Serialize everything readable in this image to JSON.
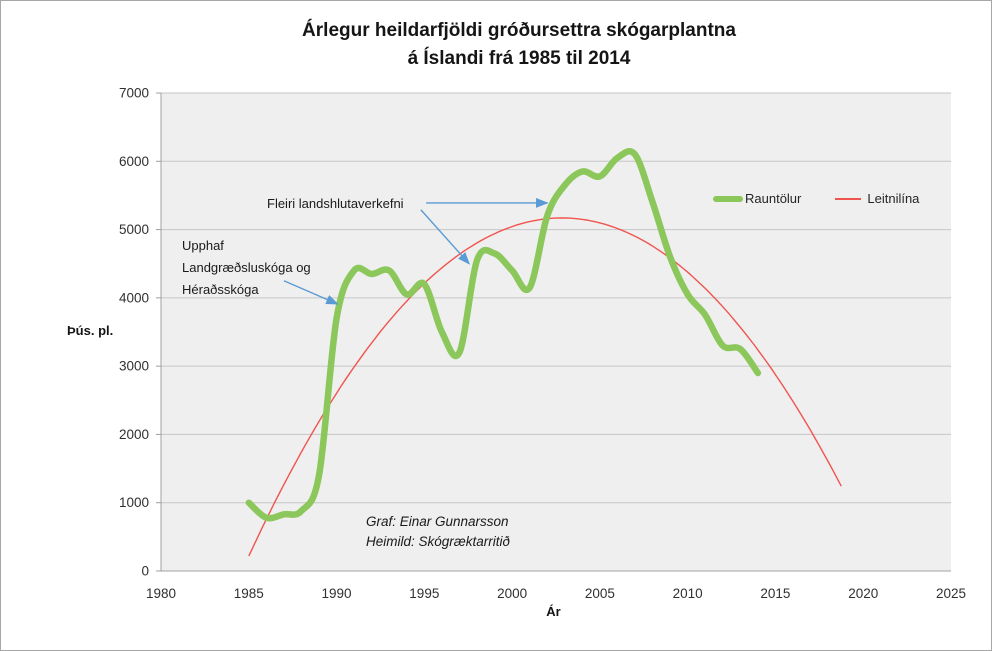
{
  "title": {
    "line1": "Árlegur heildarfjöldi gróðursettra skógarplantna",
    "line2": "á Íslandi frá 1985 til 2014"
  },
  "axes": {
    "y_label": "Þús. pl.",
    "x_label": "Ár"
  },
  "legend": [
    {
      "label": "Rauntölur",
      "color": "#8cc75c",
      "style": "thick-line"
    },
    {
      "label": "Leitnilína",
      "color": "#f0544f",
      "style": "thin-line"
    }
  ],
  "annotations": {
    "program_start": {
      "text_lines": [
        "Upphaf",
        "Landgræðsluskóga og",
        "Héraðsskóga"
      ],
      "arrow": {
        "from": [
          1987.0,
          4250
        ],
        "to": [
          1990.05,
          3910
        ]
      }
    },
    "regional_projects": {
      "text": "Fleiri landshlutaverkefni",
      "arrows": [
        {
          "from": [
            1995.1,
            5390
          ],
          "to": [
            2002.0,
            5390
          ]
        },
        {
          "from": [
            1994.8,
            5290
          ],
          "to": [
            1997.55,
            4500
          ]
        }
      ]
    },
    "arrow_color": "#5b9bd5"
  },
  "credit": {
    "line1": "Graf: Einar Gunnarsson",
    "line2": "Heimild: Skógræktarritið"
  },
  "chart_data": {
    "type": "line",
    "title": "Árlegur heildarfjöldi gróðursettra skógarplantna á Íslandi frá 1985 til 2014",
    "xlabel": "Ár",
    "ylabel": "Þús. pl.",
    "xlim": [
      1980,
      2025
    ],
    "ylim": [
      0,
      7000
    ],
    "xticks": [
      1980,
      1985,
      1990,
      1995,
      2000,
      2005,
      2010,
      2015,
      2020,
      2025
    ],
    "yticks": [
      0,
      1000,
      2000,
      3000,
      4000,
      5000,
      6000,
      7000
    ],
    "grid": "horizontal",
    "plot_bg": "#efefef",
    "gridline_color": "#c6c6c6",
    "axis_color": "#a0a0a0",
    "x": [
      1985,
      1986,
      1987,
      1988,
      1989,
      1990,
      1991,
      1992,
      1993,
      1994,
      1995,
      1996,
      1997,
      1998,
      1999,
      2000,
      2001,
      2002,
      2003,
      2004,
      2005,
      2006,
      2007,
      2008,
      2009,
      2010,
      2011,
      2012,
      2013,
      2014
    ],
    "series": [
      {
        "name": "Rauntölur",
        "color": "#8cc75c",
        "stroke_width": 6.5,
        "smooth": true,
        "values": [
          1000,
          780,
          830,
          880,
          1400,
          3700,
          4400,
          4350,
          4400,
          4050,
          4200,
          3500,
          3200,
          4550,
          4650,
          4400,
          4150,
          5200,
          5650,
          5850,
          5780,
          6050,
          6100,
          5400,
          4600,
          4050,
          3750,
          3300,
          3250,
          2900
        ]
      },
      {
        "name": "Leitnilína",
        "color": "#f0544f",
        "stroke_width": 1.4,
        "trend": {
          "type": "polynomial2",
          "peak_year": 2002.85,
          "peak_value": 5170,
          "coeff": 15.54,
          "start_year": 1985,
          "end_year": 2018.9
        }
      }
    ]
  }
}
